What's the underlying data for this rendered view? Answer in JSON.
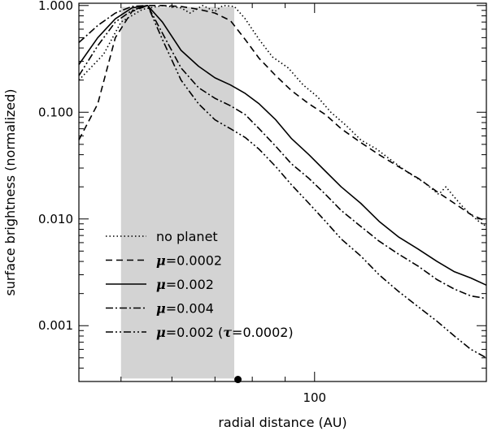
{
  "chart_data": {
    "type": "line",
    "xlabel": "radial distance (AU)",
    "ylabel": "surface brightness (normalized)",
    "xscale": "log",
    "yscale": "log",
    "xlim": [
      43,
      185
    ],
    "ylim": [
      0.0003,
      1.05
    ],
    "x_ticks": [
      {
        "value": 100,
        "label": "100"
      }
    ],
    "y_ticks": [
      {
        "value": 1,
        "label": "1.000"
      },
      {
        "value": 0.1,
        "label": "0.100"
      },
      {
        "value": 0.01,
        "label": "0.010"
      },
      {
        "value": 0.001,
        "label": "0.001"
      }
    ],
    "shaded_region": {
      "x": [
        50,
        75
      ],
      "y": [
        0.00032,
        0.97
      ],
      "color": "#d3d3d3"
    },
    "marker": {
      "x": 76,
      "y": 0.00033
    },
    "legend": {
      "position": "bottom-left"
    },
    "series": [
      {
        "name": "no planet",
        "style": "dotted",
        "x": [
          43,
          47,
          50,
          54,
          58,
          62,
          64,
          67,
          70,
          72,
          75,
          78,
          82,
          86,
          91,
          96,
          101,
          106,
          112,
          118,
          125,
          132,
          140,
          148,
          156,
          160,
          165,
          170,
          175,
          180,
          185
        ],
        "y": [
          0.2,
          0.35,
          0.7,
          0.92,
          1.0,
          0.95,
          0.85,
          1.0,
          0.88,
          1.0,
          0.98,
          0.75,
          0.48,
          0.33,
          0.26,
          0.18,
          0.14,
          0.1,
          0.075,
          0.055,
          0.045,
          0.035,
          0.027,
          0.022,
          0.017,
          0.02,
          0.016,
          0.013,
          0.011,
          0.0095,
          0.0085
        ]
      },
      {
        "name": "μ=0.0002",
        "style": "dashed",
        "x": [
          43,
          46,
          49,
          52,
          55,
          58,
          62,
          66,
          70,
          74,
          78,
          82,
          87,
          92,
          98,
          104,
          110,
          118,
          126,
          135,
          145,
          155,
          165,
          175,
          185
        ],
        "y": [
          0.055,
          0.12,
          0.5,
          0.88,
          1.0,
          1.0,
          0.98,
          0.92,
          0.85,
          0.72,
          0.48,
          0.32,
          0.22,
          0.16,
          0.12,
          0.095,
          0.07,
          0.052,
          0.04,
          0.031,
          0.024,
          0.018,
          0.014,
          0.011,
          0.0095
        ]
      },
      {
        "name": "μ=0.002",
        "style": "solid",
        "x": [
          43,
          46,
          49,
          52,
          55,
          58,
          62,
          66,
          70,
          74,
          78,
          82,
          87,
          92,
          98,
          104,
          110,
          118,
          126,
          135,
          145,
          155,
          165,
          175,
          185
        ],
        "y": [
          0.28,
          0.5,
          0.75,
          0.95,
          1.0,
          0.7,
          0.38,
          0.27,
          0.21,
          0.18,
          0.15,
          0.12,
          0.085,
          0.057,
          0.04,
          0.028,
          0.02,
          0.014,
          0.0095,
          0.0068,
          0.0052,
          0.004,
          0.0032,
          0.0028,
          0.0024
        ]
      },
      {
        "name": "μ=0.004",
        "style": "dashdot",
        "x": [
          43,
          46,
          49,
          52,
          55,
          58,
          62,
          66,
          70,
          74,
          78,
          82,
          87,
          92,
          98,
          104,
          110,
          118,
          126,
          135,
          145,
          155,
          165,
          175,
          185
        ],
        "y": [
          0.45,
          0.65,
          0.85,
          0.98,
          1.0,
          0.55,
          0.26,
          0.17,
          0.135,
          0.115,
          0.095,
          0.07,
          0.048,
          0.033,
          0.024,
          0.017,
          0.012,
          0.0085,
          0.0062,
          0.0047,
          0.0036,
          0.0027,
          0.0022,
          0.0019,
          0.0018
        ]
      },
      {
        "name": "μ=0.002 (τ=0.0002)",
        "style": "dashdotdot",
        "x": [
          43,
          46,
          49,
          52,
          55,
          58,
          62,
          66,
          70,
          74,
          78,
          82,
          87,
          92,
          98,
          104,
          110,
          118,
          126,
          135,
          145,
          155,
          165,
          175,
          185
        ],
        "y": [
          0.22,
          0.42,
          0.7,
          0.9,
          1.0,
          0.48,
          0.2,
          0.12,
          0.085,
          0.07,
          0.058,
          0.045,
          0.031,
          0.021,
          0.014,
          0.0095,
          0.0065,
          0.0045,
          0.003,
          0.0021,
          0.0015,
          0.0011,
          0.0008,
          0.0006,
          0.0005
        ]
      }
    ]
  }
}
